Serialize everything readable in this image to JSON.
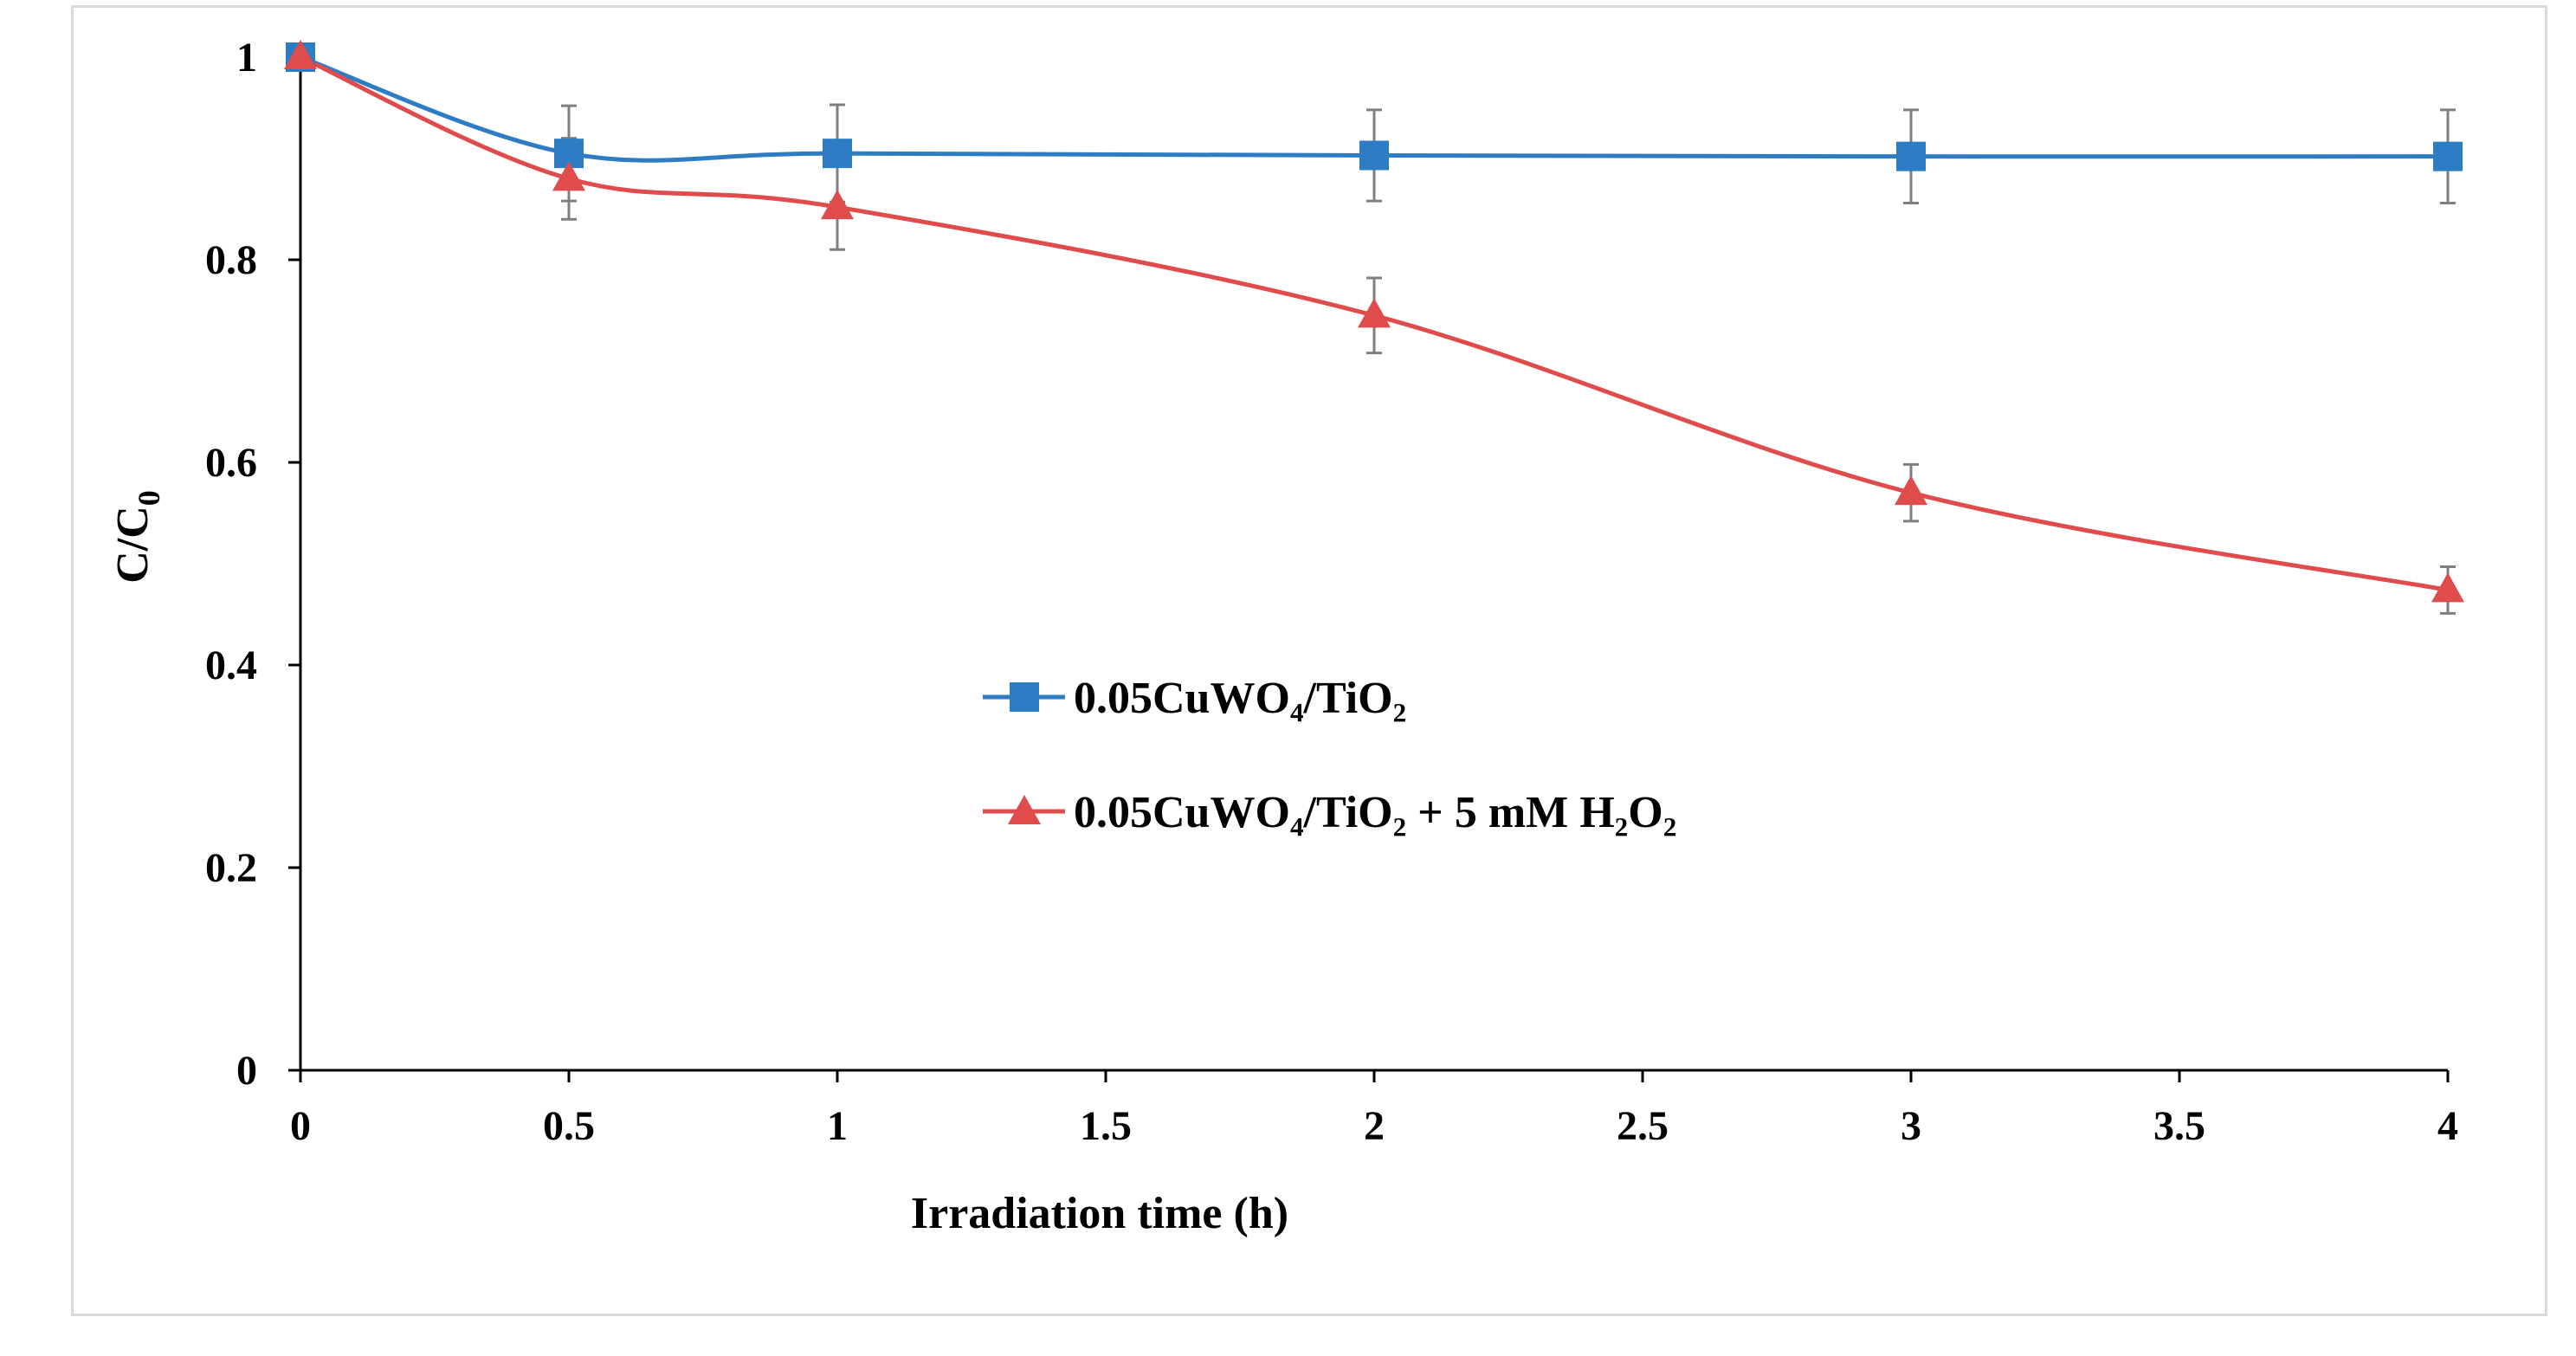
{
  "chart_data": {
    "type": "line",
    "xlabel": "Irradiation  time (h)",
    "ylabel": {
      "main": "C/C",
      "subscript": "0"
    },
    "xlim": [
      0,
      4
    ],
    "ylim": [
      0,
      1
    ],
    "xticks": [
      "0",
      "0.5",
      "1",
      "1.5",
      "2",
      "2.5",
      "3",
      "3.5",
      "4"
    ],
    "yticks": [
      "0",
      "0.2",
      "0.4",
      "0.6",
      "0.8",
      "1"
    ],
    "legend_position": "center",
    "x": [
      0,
      0.5,
      1,
      2,
      3,
      4
    ],
    "series": [
      {
        "name": "0.05CuWO₄/TiO₂",
        "color": "#2e7dc4",
        "marker": "square",
        "values": [
          1.0,
          0.905,
          0.905,
          0.903,
          0.902,
          0.902
        ],
        "errors": [
          0.0,
          0.047,
          0.048,
          0.045,
          0.046,
          0.046
        ]
      },
      {
        "name": "0.05CuWO₄/TiO₂ + 5 mM H₂O₂",
        "color": "#e04b4b",
        "marker": "triangle",
        "values": [
          1.0,
          0.88,
          0.852,
          0.745,
          0.57,
          0.474
        ],
        "errors": [
          0.0,
          0.04,
          0.042,
          0.037,
          0.028,
          0.023
        ]
      }
    ],
    "grid": false
  }
}
